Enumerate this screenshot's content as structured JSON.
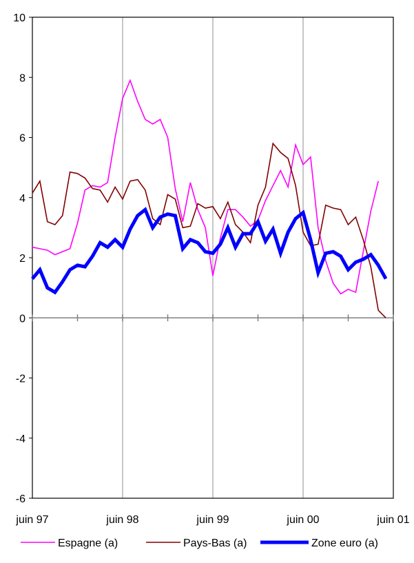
{
  "chart_data": {
    "type": "line",
    "title": "",
    "xlabel": "",
    "ylabel": "",
    "ylim": [
      -6,
      10
    ],
    "yticks": [
      -6,
      -4,
      -2,
      0,
      2,
      4,
      6,
      8,
      10
    ],
    "x_range": [
      0,
      48
    ],
    "xtick_labels": [
      {
        "label": "juin 97",
        "x": 0
      },
      {
        "label": "juin 98",
        "x": 12
      },
      {
        "label": "juin 99",
        "x": 24
      },
      {
        "label": "juin 00",
        "x": 36
      },
      {
        "label": "juin 01",
        "x": 48
      }
    ],
    "x_gridlines": [
      12,
      24,
      36
    ],
    "grid": true,
    "legend_position": "bottom",
    "series": [
      {
        "name": "Espagne (a)",
        "color": "#ff00ff",
        "width": 1.6,
        "x": [
          0,
          1,
          2,
          3,
          4,
          5,
          6,
          7,
          8,
          9,
          10,
          11,
          12,
          13,
          14,
          15,
          16,
          17,
          18,
          19,
          20,
          21,
          22,
          23,
          24,
          25,
          26,
          27,
          28,
          29,
          30,
          31,
          32,
          33,
          34,
          35,
          36,
          37,
          38,
          39,
          40,
          41,
          42,
          43,
          44,
          45,
          46
        ],
        "values": [
          2.35,
          2.3,
          2.25,
          2.1,
          2.2,
          2.3,
          3.15,
          4.25,
          4.4,
          4.35,
          4.5,
          6.0,
          7.3,
          7.9,
          7.2,
          6.6,
          6.45,
          6.6,
          6.0,
          4.3,
          3.2,
          4.5,
          3.6,
          3.0,
          1.4,
          2.65,
          3.6,
          3.6,
          3.35,
          3.05,
          3.25,
          3.9,
          4.4,
          4.9,
          4.35,
          5.75,
          5.1,
          5.35,
          3.0,
          1.9,
          1.15,
          0.8,
          0.95,
          0.85,
          2.2,
          3.55,
          4.55
        ]
      },
      {
        "name": "Pays-Bas (a)",
        "color": "#800000",
        "width": 1.6,
        "x": [
          0,
          1,
          2,
          3,
          4,
          5,
          6,
          7,
          8,
          9,
          10,
          11,
          12,
          13,
          14,
          15,
          16,
          17,
          18,
          19,
          20,
          21,
          22,
          23,
          24,
          25,
          26,
          27,
          28,
          29,
          30,
          31,
          32,
          33,
          34,
          35,
          36,
          37,
          38,
          39,
          40,
          41,
          42,
          43,
          44,
          45,
          46,
          47
        ],
        "values": [
          4.15,
          4.55,
          3.2,
          3.1,
          3.4,
          4.85,
          4.8,
          4.65,
          4.3,
          4.25,
          3.85,
          4.35,
          3.95,
          4.55,
          4.6,
          4.25,
          3.3,
          3.1,
          4.1,
          3.95,
          3.0,
          3.05,
          3.8,
          3.65,
          3.7,
          3.3,
          3.85,
          3.1,
          2.85,
          2.5,
          3.75,
          4.35,
          5.8,
          5.5,
          5.3,
          4.4,
          2.85,
          2.4,
          2.45,
          3.75,
          3.65,
          3.6,
          3.1,
          3.35,
          2.6,
          1.7,
          0.25,
          0.0
        ]
      },
      {
        "name": "Zone euro (a)",
        "color": "#0000ff",
        "width": 5,
        "x": [
          0,
          1,
          2,
          3,
          4,
          5,
          6,
          7,
          8,
          9,
          10,
          11,
          12,
          13,
          14,
          15,
          16,
          17,
          18,
          19,
          20,
          21,
          22,
          23,
          24,
          25,
          26,
          27,
          28,
          29,
          30,
          31,
          32,
          33,
          34,
          35,
          36,
          37,
          38,
          39,
          40,
          41,
          42,
          43,
          44,
          45,
          46,
          47
        ],
        "values": [
          1.3,
          1.6,
          1.0,
          0.85,
          1.2,
          1.6,
          1.75,
          1.7,
          2.05,
          2.5,
          2.35,
          2.6,
          2.35,
          2.95,
          3.4,
          3.6,
          3.0,
          3.35,
          3.45,
          3.4,
          2.3,
          2.6,
          2.5,
          2.2,
          2.15,
          2.45,
          3.0,
          2.35,
          2.8,
          2.8,
          3.2,
          2.55,
          2.95,
          2.15,
          2.85,
          3.3,
          3.5,
          2.6,
          1.5,
          2.15,
          2.2,
          2.05,
          1.6,
          1.85,
          1.95,
          2.1,
          1.75,
          1.3
        ]
      }
    ]
  }
}
